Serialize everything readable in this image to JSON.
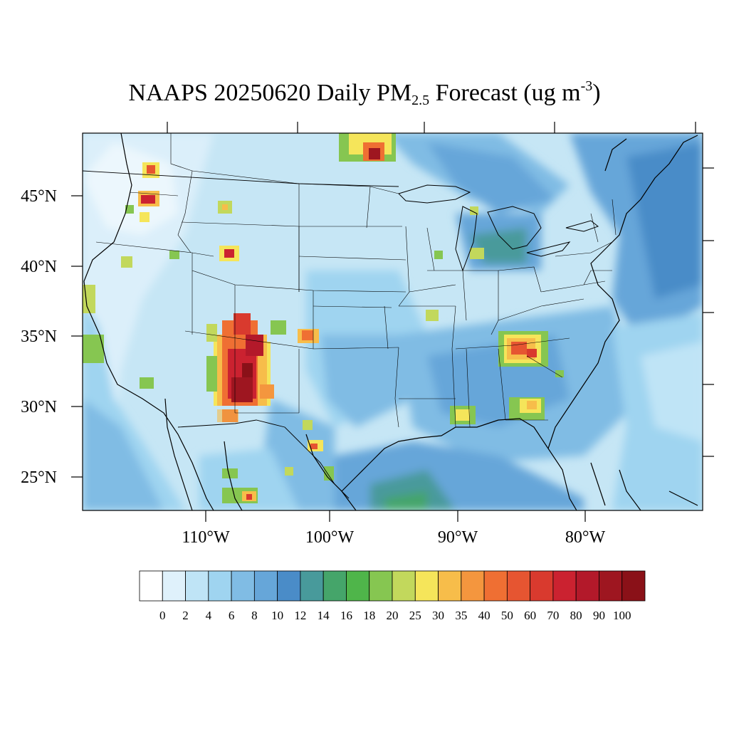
{
  "title": {
    "prefix": "NAAPS 20250620 Daily PM",
    "subscript": "2.5",
    "middle": " Forecast (ug m",
    "superscript": "-3",
    "suffix": ")"
  },
  "map": {
    "lat_labels": [
      "45°N",
      "40°N",
      "35°N",
      "30°N",
      "25°N"
    ],
    "lon_labels": [
      "110°W",
      "100°W",
      "90°W",
      "80°W"
    ],
    "field_description_colors": {
      "background_low": "#c6e6f5",
      "ocean_mid": "#8fc7e8",
      "moderate": "#4a8cc8"
    }
  },
  "colorbar": {
    "levels": [
      "0",
      "2",
      "4",
      "6",
      "8",
      "10",
      "12",
      "14",
      "16",
      "18",
      "20",
      "25",
      "30",
      "35",
      "40",
      "50",
      "60",
      "70",
      "80",
      "90",
      "100"
    ],
    "colors": [
      "#ffffff",
      "#dff1fb",
      "#bfe4f6",
      "#9fd4f0",
      "#80bce4",
      "#66a6d9",
      "#4a8cc8",
      "#489a9b",
      "#45a56a",
      "#4fb54a",
      "#86c651",
      "#c2d85c",
      "#f5e55a",
      "#f7bd4a",
      "#f4963e",
      "#ef6f33",
      "#e65531",
      "#d93a2e",
      "#cb2230",
      "#b3192a",
      "#9e1620",
      "#8a1118"
    ]
  }
}
